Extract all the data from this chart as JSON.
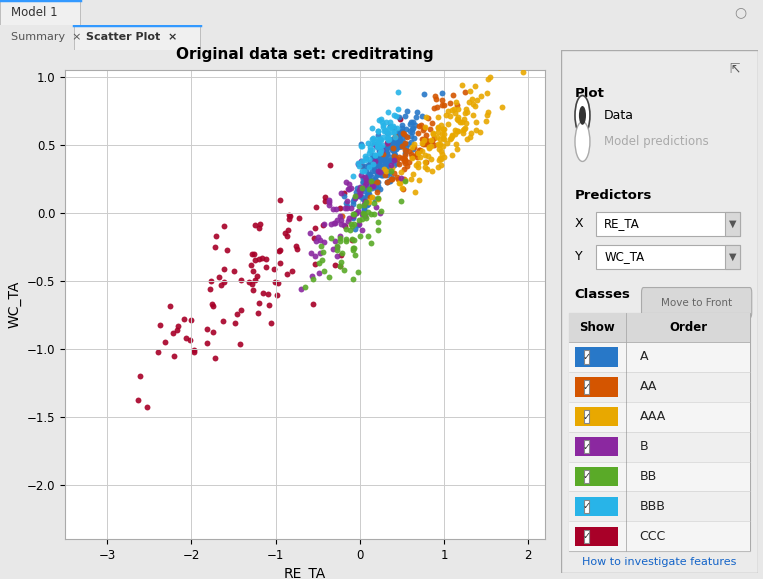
{
  "title": "Original data set: creditrating",
  "xlabel": "RE_TA",
  "ylabel": "WC_TA",
  "xlim": [
    -3.5,
    2.2
  ],
  "ylim": [
    -2.4,
    1.05
  ],
  "xticks": [
    -3,
    -2,
    -1,
    0,
    1,
    2
  ],
  "yticks": [
    -2,
    -1.5,
    -1,
    -0.5,
    0,
    0.5,
    1
  ],
  "classes": [
    {
      "name": "A",
      "color": "#2878C8",
      "n": 220,
      "x_mean": 0.3,
      "y_mean": 0.38,
      "x_std": 0.2,
      "y_std": 0.18
    },
    {
      "name": "AA",
      "color": "#D45500",
      "n": 80,
      "x_mean": 0.6,
      "y_mean": 0.48,
      "x_std": 0.25,
      "y_std": 0.2
    },
    {
      "name": "AAA",
      "color": "#E8A800",
      "n": 130,
      "x_mean": 1.0,
      "y_mean": 0.55,
      "x_std": 0.35,
      "y_std": 0.2
    },
    {
      "name": "B",
      "color": "#8B28A0",
      "n": 80,
      "x_mean": -0.05,
      "y_mean": 0.08,
      "x_std": 0.28,
      "y_std": 0.25
    },
    {
      "name": "BB",
      "color": "#5AAA28",
      "n": 60,
      "x_mean": 0.05,
      "y_mean": -0.05,
      "x_std": 0.3,
      "y_std": 0.22
    },
    {
      "name": "BBB",
      "color": "#28B4E8",
      "n": 70,
      "x_mean": 0.22,
      "y_mean": 0.52,
      "x_std": 0.13,
      "y_std": 0.12
    },
    {
      "name": "CCC",
      "color": "#A80028",
      "n": 100,
      "x_mean": -1.2,
      "y_mean": -0.45,
      "x_std": 0.7,
      "y_std": 0.42
    }
  ],
  "marker_size": 18,
  "alpha": 0.9,
  "bg_color": "#e8e8e8",
  "plot_bg": "#ffffff",
  "panel_bg": "#e8e8e8",
  "grid_color": "#cccccc",
  "toolbar_color": "#d4d4d4",
  "tab_active_color": "#f0f0f0",
  "tab_inactive_color": "#d0d0d0"
}
